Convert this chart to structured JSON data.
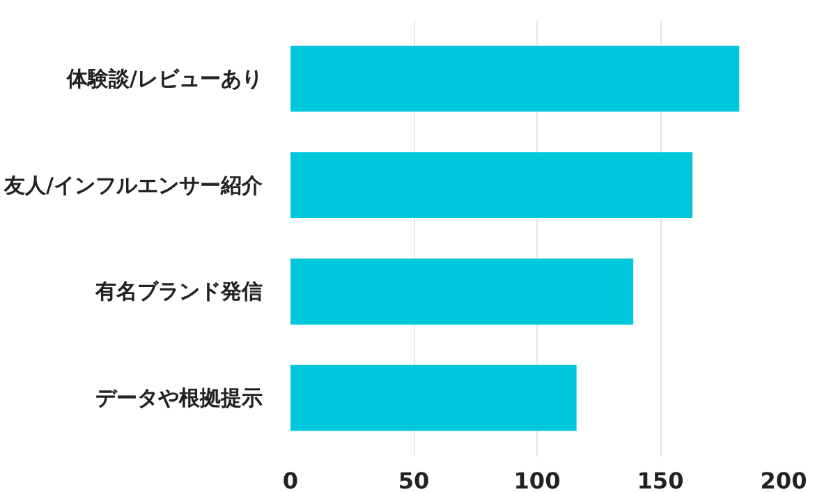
{
  "chart_data": {
    "type": "bar",
    "orientation": "horizontal",
    "categories": [
      "体験談/レビューあり",
      "友人/インフルエンサー紹介",
      "有名ブランド発信",
      "データや根拠提示"
    ],
    "values": [
      182,
      163,
      139,
      116
    ],
    "color": "#00c8dc",
    "xlim": [
      0,
      200
    ],
    "xticks": [
      0,
      50,
      100,
      150,
      200
    ],
    "grid": "x"
  }
}
